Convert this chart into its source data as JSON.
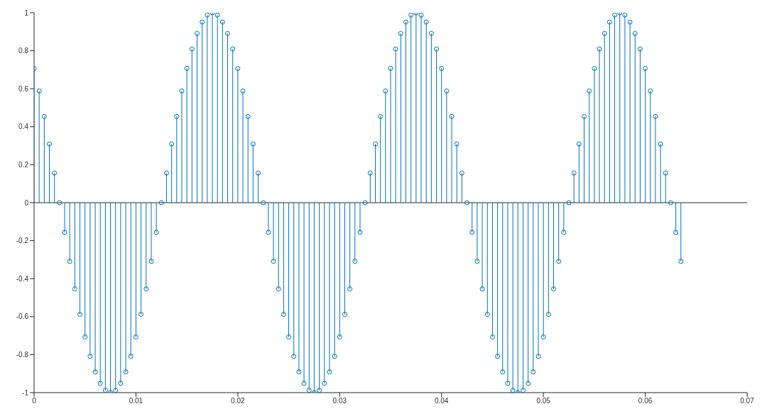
{
  "chart_data": {
    "type": "lollipop",
    "color": "#0072bd",
    "marker": "circle",
    "x": [
      0,
      0.0005,
      0.001,
      0.0015,
      0.002,
      0.0025,
      0.003,
      0.0035,
      0.004,
      0.0045,
      0.005,
      0.0055,
      0.006,
      0.0065,
      0.007,
      0.0075,
      0.008,
      0.0085,
      0.009,
      0.0095,
      0.01,
      0.0105,
      0.011,
      0.0115,
      0.012,
      0.0125,
      0.013,
      0.0135,
      0.014,
      0.0145,
      0.015,
      0.0155,
      0.016,
      0.0165,
      0.017,
      0.0175,
      0.018,
      0.0185,
      0.019,
      0.0195,
      0.02,
      0.0205,
      0.021,
      0.0215,
      0.022,
      0.0225,
      0.023,
      0.0235,
      0.024,
      0.0245,
      0.025,
      0.0255,
      0.026,
      0.0265,
      0.027,
      0.0275,
      0.028,
      0.0285,
      0.029,
      0.0295,
      0.03,
      0.0305,
      0.031,
      0.0315,
      0.032,
      0.0325,
      0.033,
      0.0335,
      0.034,
      0.0345,
      0.035,
      0.0355,
      0.036,
      0.0365,
      0.037,
      0.0375,
      0.038,
      0.0385,
      0.039,
      0.0395,
      0.04,
      0.0405,
      0.041,
      0.0415,
      0.042,
      0.0425,
      0.043,
      0.0435,
      0.044,
      0.0445,
      0.045,
      0.0455,
      0.046,
      0.0465,
      0.047,
      0.0475,
      0.048,
      0.0485,
      0.049,
      0.0495,
      0.05,
      0.0505,
      0.051,
      0.0515,
      0.052,
      0.0525,
      0.053,
      0.0535,
      0.054,
      0.0545,
      0.055,
      0.0555,
      0.056,
      0.0565,
      0.057,
      0.0575,
      0.058,
      0.0585,
      0.059,
      0.0595,
      0.06,
      0.0605,
      0.061,
      0.0615,
      0.062,
      0.0625,
      0.063,
      0.0635
    ],
    "values": [
      0.707,
      0.588,
      0.454,
      0.309,
      0.156,
      0,
      -0.156,
      -0.309,
      -0.454,
      -0.588,
      -0.707,
      -0.809,
      -0.891,
      -0.951,
      -0.988,
      -1,
      -0.988,
      -0.951,
      -0.891,
      -0.809,
      -0.707,
      -0.588,
      -0.454,
      -0.309,
      -0.156,
      0,
      0.156,
      0.309,
      0.454,
      0.588,
      0.707,
      0.809,
      0.891,
      0.951,
      0.988,
      1,
      0.988,
      0.951,
      0.891,
      0.809,
      0.707,
      0.588,
      0.454,
      0.309,
      0.156,
      0,
      -0.156,
      -0.309,
      -0.454,
      -0.588,
      -0.707,
      -0.809,
      -0.891,
      -0.951,
      -0.988,
      -1,
      -0.988,
      -0.951,
      -0.891,
      -0.809,
      -0.707,
      -0.588,
      -0.454,
      -0.309,
      -0.156,
      0,
      0.156,
      0.309,
      0.454,
      0.588,
      0.707,
      0.809,
      0.891,
      0.951,
      0.988,
      1,
      0.988,
      0.951,
      0.891,
      0.809,
      0.707,
      0.588,
      0.454,
      0.309,
      0.156,
      0,
      -0.156,
      -0.309,
      -0.454,
      -0.588,
      -0.707,
      -0.809,
      -0.891,
      -0.951,
      -0.988,
      -1,
      -0.988,
      -0.951,
      -0.891,
      -0.809,
      -0.707,
      -0.588,
      -0.454,
      -0.309,
      -0.156,
      0,
      0.156,
      0.309,
      0.454,
      0.588,
      0.707,
      0.809,
      0.891,
      0.951,
      0.988,
      1,
      0.988,
      0.951,
      0.891,
      0.809,
      0.707,
      0.588,
      0.454,
      0.309,
      0.156,
      0,
      -0.156,
      -0.309
    ],
    "xlim": [
      0,
      0.07
    ],
    "xticks": [
      0,
      0.01,
      0.02,
      0.03,
      0.04,
      0.05,
      0.06,
      0.07
    ],
    "ylim": [
      -1,
      1
    ],
    "yticks": [
      -1,
      -0.8,
      -0.6,
      -0.4,
      -0.2,
      0,
      0.2,
      0.4,
      0.6,
      0.8,
      1
    ]
  }
}
